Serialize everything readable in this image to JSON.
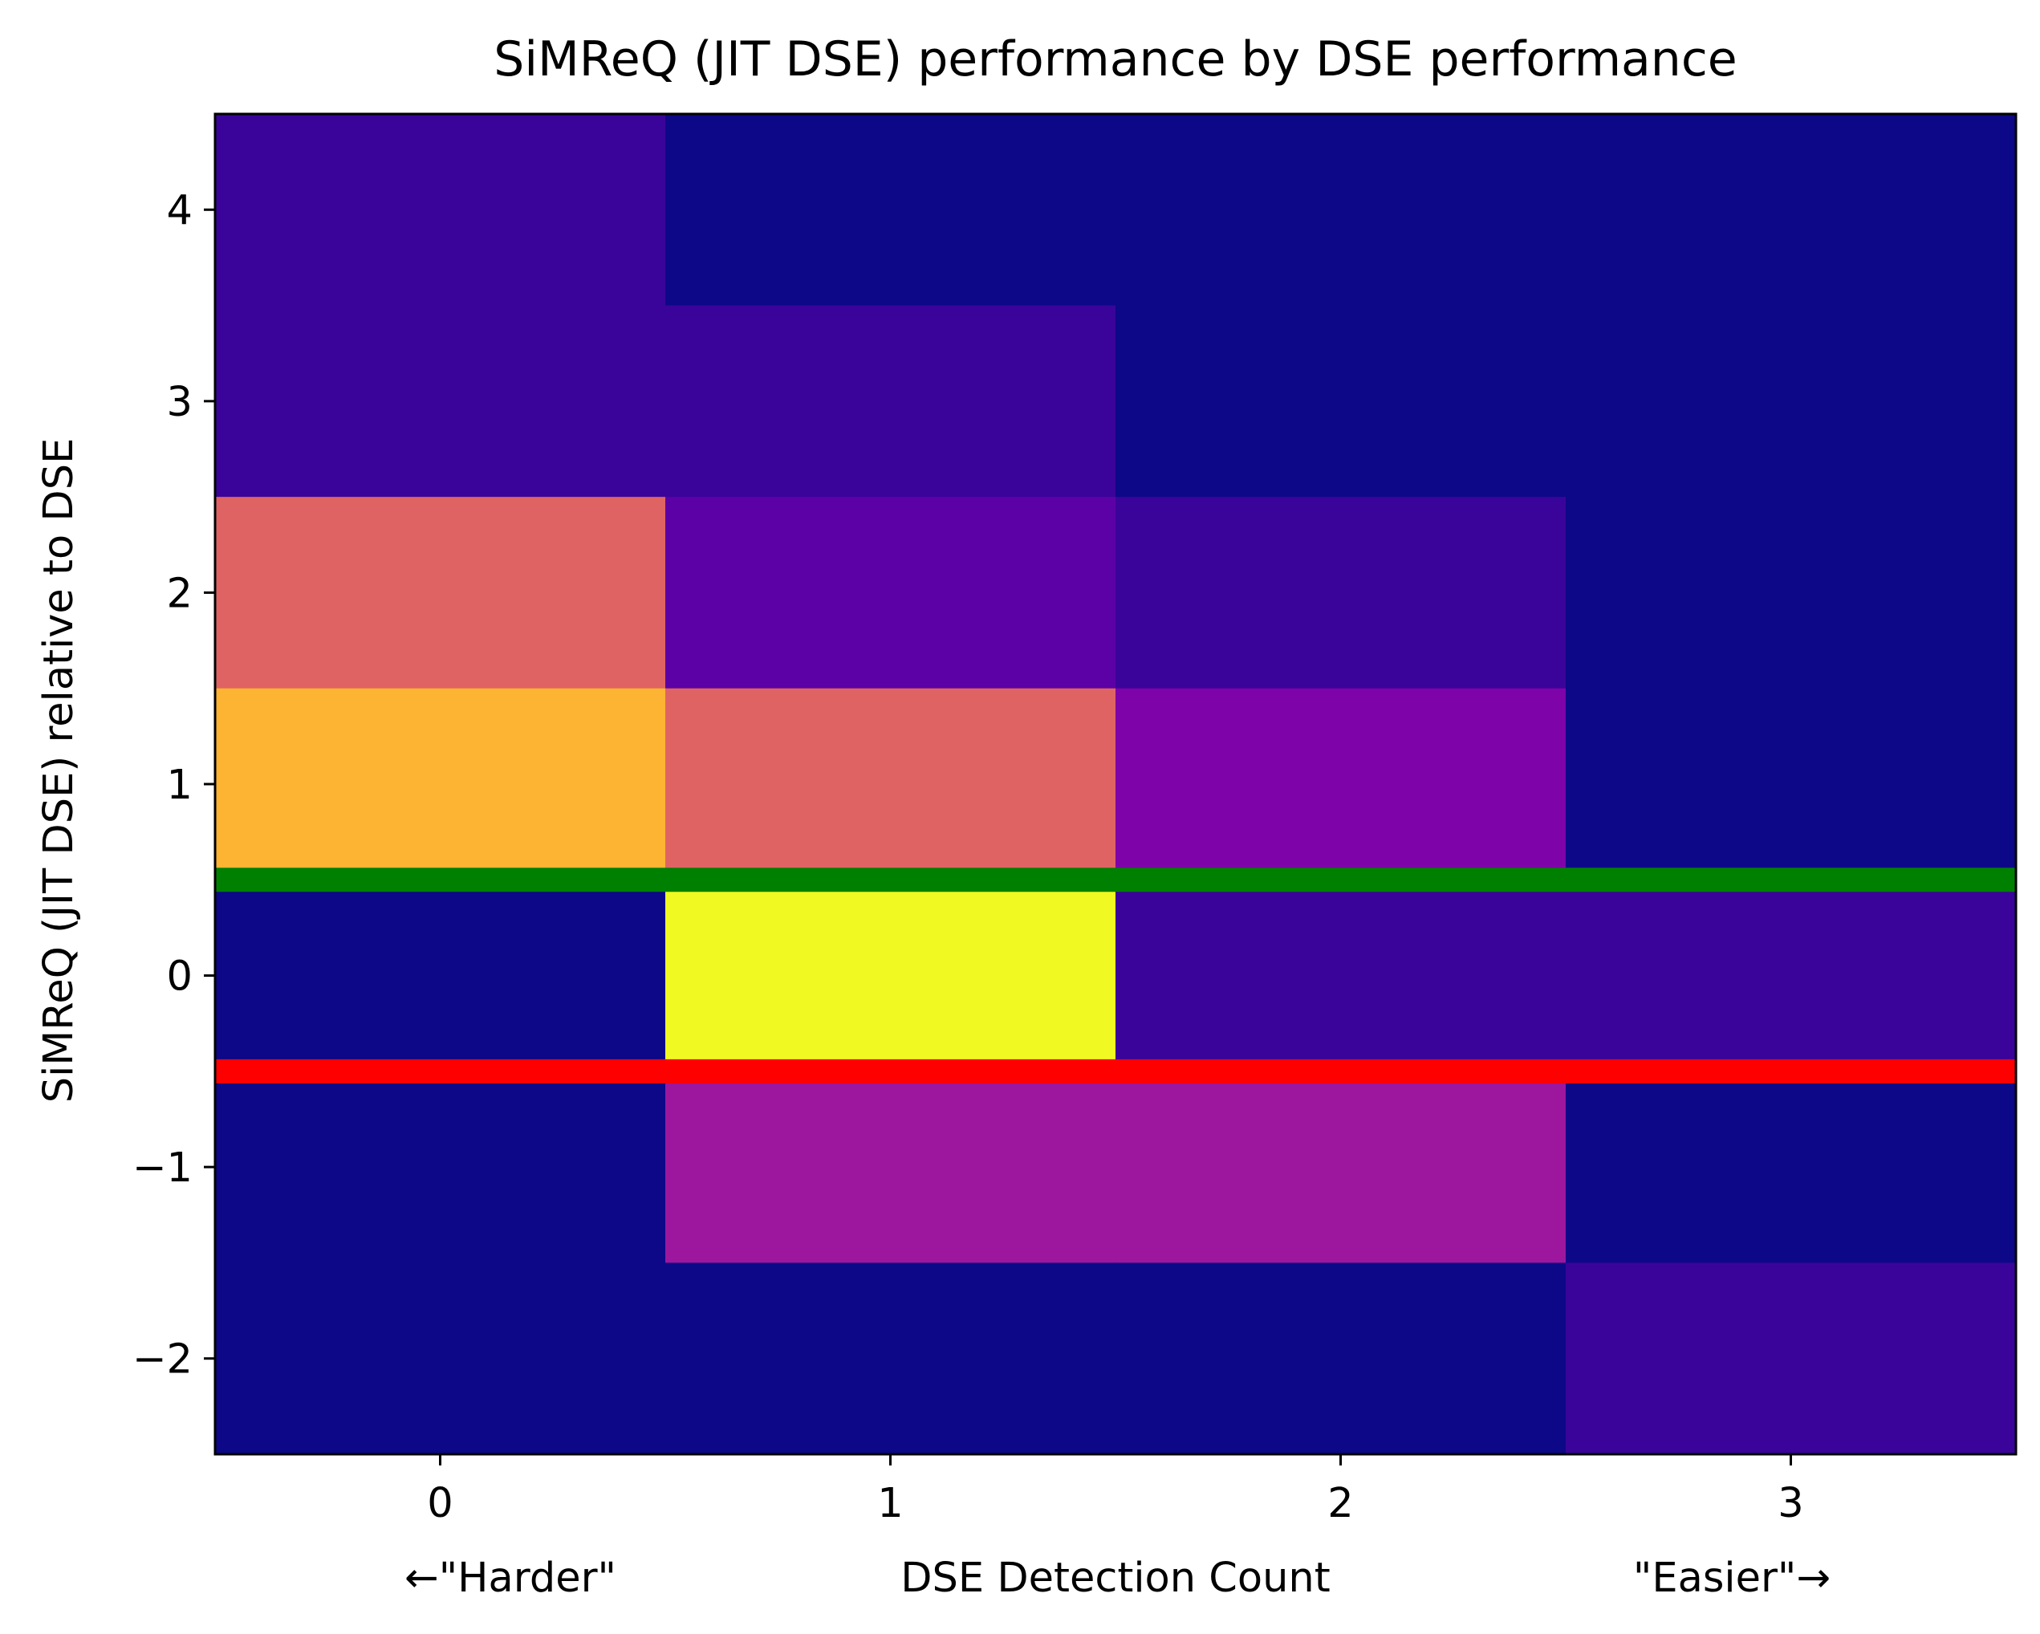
{
  "chart_data": {
    "type": "heatmap",
    "title": "SiMReQ (JIT DSE) performance by DSE performance",
    "xlabel": "DSE Detection Count",
    "ylabel": "SiMReQ (JIT DSE) relative to DSE",
    "x_left_label": "←\"Harder\"",
    "x_right_label": "\"Easier\"→",
    "x_categories": [
      0,
      1,
      2,
      3
    ],
    "y_categories": [
      -2,
      -1,
      0,
      1,
      2,
      3,
      4
    ],
    "xlim": [
      -0.5,
      3.5
    ],
    "ylim": [
      -2.5,
      4.5
    ],
    "x_ticks": [
      "0",
      "1",
      "2",
      "3"
    ],
    "y_ticks": [
      "−2",
      "−1",
      "0",
      "1",
      "2",
      "3",
      "4"
    ],
    "colormap": "plasma",
    "value_range": [
      0,
      1
    ],
    "cell_values": [
      {
        "x": 0,
        "y": 4,
        "value": 0.1
      },
      {
        "x": 1,
        "y": 4,
        "value": 0.0
      },
      {
        "x": 2,
        "y": 4,
        "value": 0.0
      },
      {
        "x": 3,
        "y": 4,
        "value": 0.0
      },
      {
        "x": 0,
        "y": 3,
        "value": 0.1
      },
      {
        "x": 1,
        "y": 3,
        "value": 0.1
      },
      {
        "x": 2,
        "y": 3,
        "value": 0.0
      },
      {
        "x": 3,
        "y": 3,
        "value": 0.0
      },
      {
        "x": 0,
        "y": 2,
        "value": 0.6
      },
      {
        "x": 1,
        "y": 2,
        "value": 0.2
      },
      {
        "x": 2,
        "y": 2,
        "value": 0.1
      },
      {
        "x": 3,
        "y": 2,
        "value": 0.0
      },
      {
        "x": 0,
        "y": 1,
        "value": 0.8
      },
      {
        "x": 1,
        "y": 1,
        "value": 0.6
      },
      {
        "x": 2,
        "y": 1,
        "value": 0.3
      },
      {
        "x": 3,
        "y": 1,
        "value": 0.0
      },
      {
        "x": 0,
        "y": 0,
        "value": 0.0
      },
      {
        "x": 1,
        "y": 0,
        "value": 1.0
      },
      {
        "x": 2,
        "y": 0,
        "value": 0.1
      },
      {
        "x": 3,
        "y": 0,
        "value": 0.1
      },
      {
        "x": 0,
        "y": -1,
        "value": 0.0
      },
      {
        "x": 1,
        "y": -1,
        "value": 0.4
      },
      {
        "x": 2,
        "y": -1,
        "value": 0.4
      },
      {
        "x": 3,
        "y": -1,
        "value": 0.0
      },
      {
        "x": 0,
        "y": -2,
        "value": 0.0
      },
      {
        "x": 1,
        "y": -2,
        "value": 0.0
      },
      {
        "x": 2,
        "y": -2,
        "value": 0.0
      },
      {
        "x": 3,
        "y": -2,
        "value": 0.1
      }
    ],
    "colors": {
      "0.0": "#0d0887",
      "0.1": "#3a049a",
      "0.2": "#5c01a6",
      "0.3": "#7e03a8",
      "0.4": "#9c179e",
      "0.6": "#e06363",
      "0.8": "#fcb432",
      "1.0": "#f0f921"
    },
    "reference_lines": [
      {
        "y": 0.5,
        "color": "#008000"
      },
      {
        "y": -0.5,
        "color": "#ff0000"
      }
    ],
    "grid": false
  }
}
